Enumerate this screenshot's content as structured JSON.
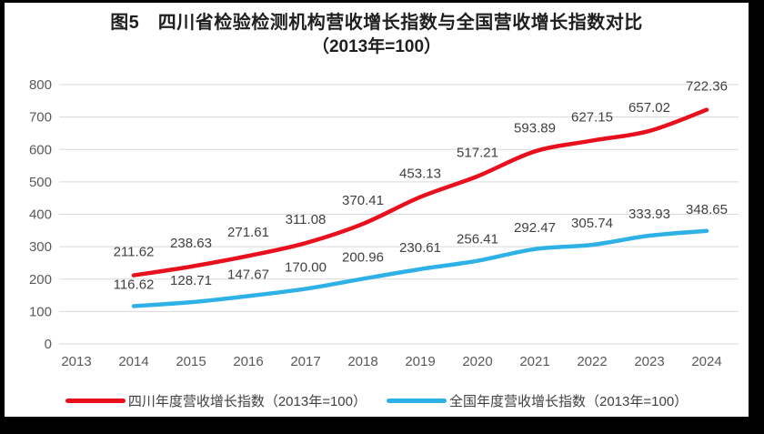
{
  "surface": {
    "frame_color": "#000000",
    "card_color": "#ffffff"
  },
  "chart": {
    "title_line1": "图5　四川省检验检测机构营收增长指数与全国营收增长指数对比",
    "title_line2": "（2013年=100）"
  },
  "chart_data": {
    "type": "line",
    "title": "图5　四川省检验检测机构营收增长指数与全国营收增长指数对比（2013年=100）",
    "categories": [
      "2013",
      "2014",
      "2015",
      "2016",
      "2017",
      "2018",
      "2019",
      "2020",
      "2021",
      "2022",
      "2023",
      "2024"
    ],
    "series": [
      {
        "name": "四川年度营收增长指数（2013年=100）",
        "color": "#e8101c",
        "first_category_index": 1,
        "values": [
          211.62,
          238.63,
          271.61,
          311.08,
          370.41,
          453.13,
          517.21,
          593.89,
          627.15,
          657.02,
          722.36
        ]
      },
      {
        "name": "全国年度营收增长指数（2013年=100）",
        "color": "#2eb1e6",
        "first_category_index": 1,
        "values": [
          116.62,
          128.71,
          147.67,
          170.0,
          200.96,
          230.61,
          256.41,
          292.47,
          305.74,
          333.93,
          348.65
        ]
      }
    ],
    "xlabel": "",
    "ylabel": "",
    "ylim": [
      0,
      800
    ],
    "ytick_step": 100,
    "grid": "horizontal",
    "gridline_color": "#d9d9d9",
    "axis_text_color": "#595959",
    "label_text_color": "#404040",
    "legend_position": "bottom",
    "data_labels": true
  }
}
